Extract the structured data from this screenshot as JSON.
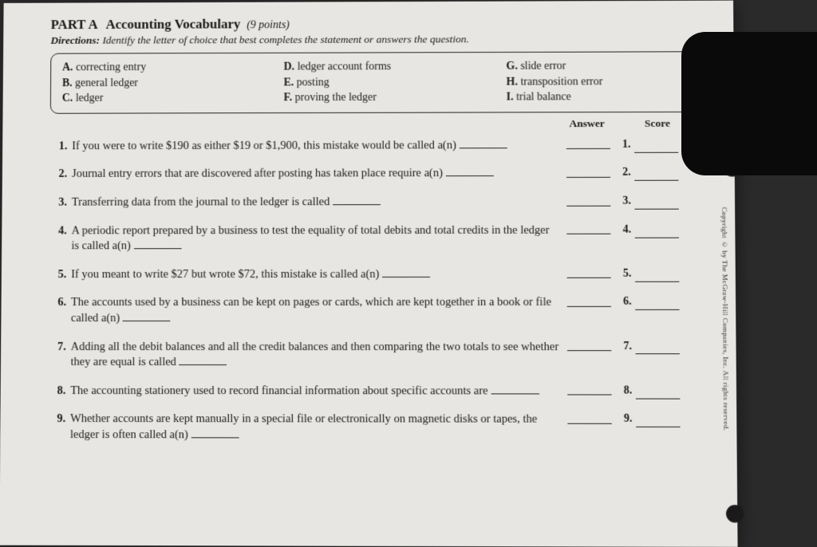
{
  "header": {
    "part_label": "PART A",
    "title": "Accounting Vocabulary",
    "points": "(9 points)",
    "directions_label": "Directions:",
    "directions_text": "Identify the letter of choice that best completes the statement or answers the question."
  },
  "choices": {
    "col1": [
      {
        "letter": "A.",
        "text": "correcting entry"
      },
      {
        "letter": "B.",
        "text": "general ledger"
      },
      {
        "letter": "C.",
        "text": "ledger"
      }
    ],
    "col2": [
      {
        "letter": "D.",
        "text": "ledger account forms"
      },
      {
        "letter": "E.",
        "text": "posting"
      },
      {
        "letter": "F.",
        "text": "proving the ledger"
      }
    ],
    "col3": [
      {
        "letter": "G.",
        "text": "slide error"
      },
      {
        "letter": "H.",
        "text": "transposition error"
      },
      {
        "letter": "I.",
        "text": "trial balance"
      }
    ]
  },
  "column_headers": {
    "answer": "Answer",
    "score": "Score"
  },
  "questions": [
    {
      "num": "1.",
      "text_a": "If you were to write $190 as either $19 or $1,900, this mistake would be called a(n) ",
      "score_num": "1."
    },
    {
      "num": "2.",
      "text_a": "Journal entry errors that are discovered after posting has taken place require a(n) ",
      "score_num": "2."
    },
    {
      "num": "3.",
      "text_a": "Transferring data from the journal to the ledger is called ",
      "score_num": "3."
    },
    {
      "num": "4.",
      "text_a": "A periodic report prepared by a business to test the equality of total debits and total credits in the ledger is called a(n) ",
      "score_num": "4."
    },
    {
      "num": "5.",
      "text_a": "If you meant to write $27 but wrote $72, this mistake is called a(n) ",
      "score_num": "5."
    },
    {
      "num": "6.",
      "text_a": "The accounts used by a business can be kept on pages or cards, which are kept together in a book or file called a(n) ",
      "score_num": "6."
    },
    {
      "num": "7.",
      "text_a": "Adding all the debit balances and all the credit balances and then comparing the two totals to see whether they are equal is called ",
      "score_num": "7."
    },
    {
      "num": "8.",
      "text_a": "The accounting stationery used to record financial information about specific accounts are ",
      "score_num": "8."
    },
    {
      "num": "9.",
      "text_a": "Whether accounts are kept manually in a special file or electronically on magnetic disks or tapes, the ledger is often called a(n) ",
      "score_num": "9."
    }
  ],
  "copyright": "Copyright © by The McGraw-Hill Companies, Inc. All rights reserved.",
  "style": {
    "page_bg": "#e8e6e2",
    "body_bg": "#2a2a2a",
    "text_color": "#1a1a1a",
    "border_color": "#222222"
  }
}
